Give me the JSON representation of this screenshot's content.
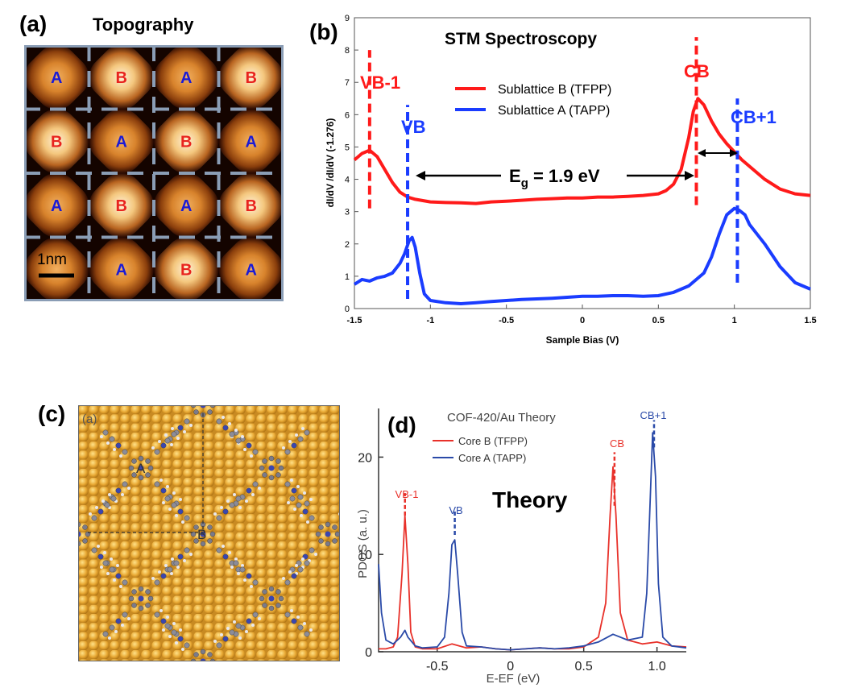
{
  "panel_a": {
    "label": "(a)",
    "title": "Topography",
    "scale_bar_label": "1nm",
    "grid": [
      [
        "A",
        "B",
        "A",
        "B"
      ],
      [
        "B",
        "A",
        "B",
        "A"
      ],
      [
        "A",
        "B",
        "A",
        "B"
      ],
      [
        "",
        "A",
        "B",
        "A"
      ]
    ],
    "colors": {
      "A": "#1a1ad6",
      "B": "#e8231e",
      "frame": "#8a9db5"
    }
  },
  "panel_b": {
    "label": "(b)",
    "title": "STM Spectroscopy",
    "annotations": {
      "vb1": "VB-1",
      "vb": "VB",
      "cb": "CB",
      "cb1": "CB+1",
      "gap_main": "E",
      "gap_sub": "g",
      "gap_rest": " = 1.9 eV"
    }
  },
  "panel_c": {
    "label": "(c)",
    "inner_label": "(a)",
    "site_a": "A",
    "site_b": "B"
  },
  "panel_d": {
    "label": "(d)",
    "title": "COF-420/Au  Theory",
    "big_label": "Theory",
    "annotations": {
      "vb1": "VB-1",
      "vb": "VB",
      "cb": "CB",
      "cb1": "CB+1"
    }
  },
  "chart_data": [
    {
      "type": "line",
      "title": "STM Spectroscopy",
      "xlabel": "Sample Bias (V)",
      "ylabel": "dI/dV /dI/dV (-1.276)",
      "xlim": [
        -1.5,
        1.5
      ],
      "ylim": [
        0,
        9
      ],
      "xticks": [
        -1.5,
        -1,
        -0.5,
        0,
        0.5,
        1,
        1.5
      ],
      "yticks": [
        0,
        1,
        2,
        3,
        4,
        5,
        6,
        7,
        8,
        9
      ],
      "legend": "top-center",
      "series": [
        {
          "name": "Sublattice B (TFPP)",
          "color": "#ff1a1a",
          "x": [
            -1.5,
            -1.45,
            -1.4,
            -1.35,
            -1.3,
            -1.25,
            -1.2,
            -1.15,
            -1.1,
            -1.0,
            -0.9,
            -0.8,
            -0.7,
            -0.6,
            -0.5,
            -0.4,
            -0.3,
            -0.2,
            -0.1,
            0,
            0.1,
            0.2,
            0.3,
            0.4,
            0.5,
            0.55,
            0.6,
            0.65,
            0.7,
            0.73,
            0.76,
            0.8,
            0.85,
            0.9,
            0.95,
            1.0,
            1.05,
            1.1,
            1.2,
            1.3,
            1.4,
            1.5
          ],
          "y": [
            4.6,
            4.8,
            4.9,
            4.7,
            4.3,
            3.9,
            3.6,
            3.45,
            3.38,
            3.3,
            3.28,
            3.27,
            3.25,
            3.3,
            3.32,
            3.35,
            3.38,
            3.4,
            3.42,
            3.42,
            3.45,
            3.45,
            3.47,
            3.5,
            3.55,
            3.65,
            3.85,
            4.3,
            5.3,
            6.1,
            6.5,
            6.3,
            5.8,
            5.4,
            5.1,
            4.85,
            4.6,
            4.4,
            4.0,
            3.7,
            3.55,
            3.5
          ]
        },
        {
          "name": "Sublattice A (TAPP)",
          "color": "#1a3cff",
          "x": [
            -1.5,
            -1.45,
            -1.4,
            -1.35,
            -1.3,
            -1.25,
            -1.2,
            -1.17,
            -1.14,
            -1.12,
            -1.1,
            -1.07,
            -1.04,
            -1.0,
            -0.9,
            -0.8,
            -0.7,
            -0.6,
            -0.5,
            -0.4,
            -0.3,
            -0.2,
            -0.1,
            0,
            0.1,
            0.2,
            0.3,
            0.4,
            0.5,
            0.6,
            0.7,
            0.8,
            0.85,
            0.9,
            0.95,
            1.0,
            1.03,
            1.07,
            1.1,
            1.2,
            1.3,
            1.4,
            1.5
          ],
          "y": [
            0.75,
            0.9,
            0.85,
            0.95,
            1.0,
            1.1,
            1.4,
            1.7,
            2.1,
            2.2,
            1.9,
            1.1,
            0.45,
            0.25,
            0.18,
            0.15,
            0.18,
            0.22,
            0.25,
            0.28,
            0.3,
            0.32,
            0.35,
            0.38,
            0.38,
            0.4,
            0.4,
            0.38,
            0.4,
            0.5,
            0.7,
            1.1,
            1.6,
            2.3,
            2.9,
            3.1,
            3.05,
            2.9,
            2.6,
            2.0,
            1.3,
            0.8,
            0.6
          ]
        }
      ]
    },
    {
      "type": "line",
      "title": "COF-420/Au  Theory",
      "xlabel": "E-E_F (eV)",
      "ylabel": "PDOS (a. u.)",
      "xlim": [
        -0.9,
        1.2
      ],
      "ylim": [
        0,
        25
      ],
      "xticks": [
        -0.5,
        0,
        0.5,
        1.0
      ],
      "yticks": [
        0,
        10,
        20
      ],
      "legend": "top-left",
      "series": [
        {
          "name": "Core B (TFPP)",
          "color": "#e8312a",
          "x": [
            -0.9,
            -0.85,
            -0.8,
            -0.77,
            -0.74,
            -0.72,
            -0.7,
            -0.68,
            -0.65,
            -0.6,
            -0.5,
            -0.4,
            -0.3,
            -0.2,
            -0.1,
            0,
            0.1,
            0.2,
            0.3,
            0.4,
            0.5,
            0.6,
            0.65,
            0.68,
            0.7,
            0.72,
            0.75,
            0.8,
            0.9,
            1.0,
            1.1,
            1.2
          ],
          "y": [
            0.3,
            0.3,
            0.5,
            1.5,
            8,
            14,
            9,
            2,
            0.5,
            0.3,
            0.3,
            0.8,
            0.4,
            0.5,
            0.3,
            0.2,
            0.3,
            0.4,
            0.3,
            0.3,
            0.5,
            1.5,
            5,
            14,
            19,
            14,
            4,
            1.2,
            0.8,
            1.0,
            0.6,
            0.5
          ]
        },
        {
          "name": "Core A (TAPP)",
          "color": "#2a4aa8",
          "x": [
            -0.9,
            -0.88,
            -0.85,
            -0.8,
            -0.75,
            -0.72,
            -0.7,
            -0.65,
            -0.6,
            -0.5,
            -0.45,
            -0.42,
            -0.4,
            -0.38,
            -0.36,
            -0.33,
            -0.3,
            -0.2,
            -0.1,
            0,
            0.1,
            0.2,
            0.3,
            0.4,
            0.5,
            0.6,
            0.7,
            0.8,
            0.9,
            0.93,
            0.95,
            0.97,
            0.99,
            1.01,
            1.04,
            1.1,
            1.2
          ],
          "y": [
            9,
            4,
            1.2,
            0.8,
            1.5,
            2.2,
            1.5,
            0.6,
            0.4,
            0.5,
            1.5,
            6,
            11,
            11.5,
            8,
            2,
            0.6,
            0.5,
            0.3,
            0.2,
            0.3,
            0.4,
            0.3,
            0.4,
            0.6,
            1.0,
            1.8,
            1.2,
            1.5,
            6,
            14,
            22.5,
            18,
            7,
            1.5,
            0.6,
            0.4
          ]
        }
      ]
    }
  ]
}
